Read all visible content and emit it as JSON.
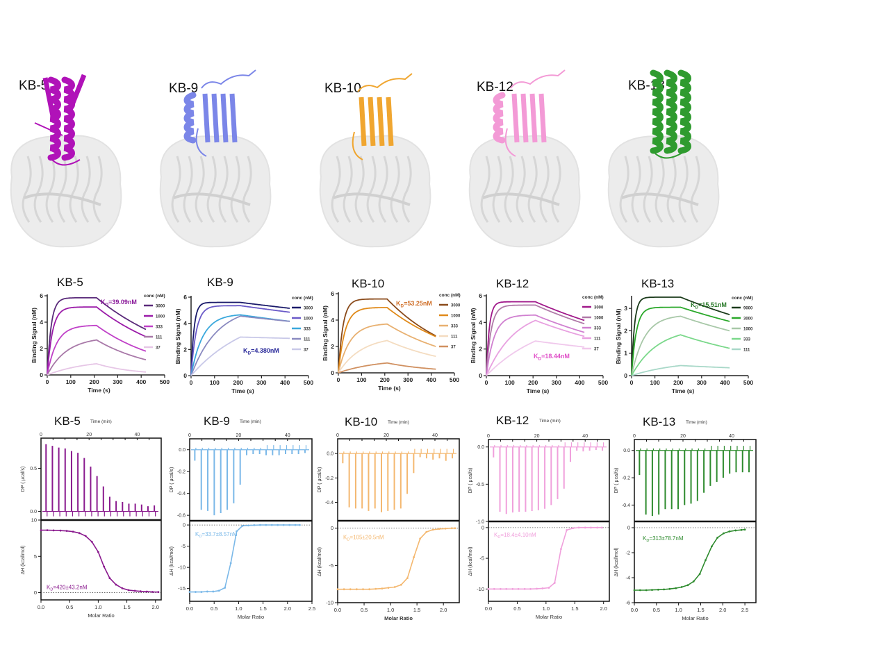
{
  "structures": [
    {
      "label": "KB-5",
      "color": "#b012b8"
    },
    {
      "label": "KB-9",
      "color": "#7b86e8"
    },
    {
      "label": "KB-10",
      "color": "#f0a630"
    },
    {
      "label": "KB-12",
      "color": "#f39ad6"
    },
    {
      "label": "KB-13",
      "color": "#2f9b2f"
    }
  ],
  "chart_data": [
    {
      "type": "line",
      "panel": "BLI",
      "title": "KB-5",
      "xlabel": "Time (s)",
      "ylabel": "Binding Signal (nM)",
      "xlim": [
        0,
        500
      ],
      "ylim": [
        0,
        6
      ],
      "xticks": [
        0,
        100,
        200,
        300,
        400,
        500
      ],
      "yticks": [
        0,
        2,
        4,
        6
      ],
      "annotation": {
        "text": "K",
        "sub": "D",
        "rest": "=39.09nM",
        "position": "top-right",
        "color": "#8a1a9a"
      },
      "legend": {
        "title": "conc (nM)",
        "position": "right"
      },
      "series": [
        {
          "name": "3000",
          "color": "#5a2a7a",
          "plateau": 5.85,
          "end": 3.45,
          "kon": 0.06,
          "koff": 0.0055
        },
        {
          "name": "1000",
          "color": "#9a1aa8",
          "plateau": 5.15,
          "end": 2.9,
          "kon": 0.045,
          "koff": 0.0055
        },
        {
          "name": "333",
          "color": "#c040c8",
          "plateau": 3.75,
          "end": 1.8,
          "kon": 0.025,
          "koff": 0.0065
        },
        {
          "name": "111",
          "color": "#a878a8",
          "plateau": 2.65,
          "end": 1.15,
          "kon": 0.012,
          "koff": 0.007
        },
        {
          "name": "37",
          "color": "#e6c6e6",
          "plateau": 0.85,
          "end": 0.22,
          "kon": 0.006,
          "koff": 0.01
        }
      ]
    },
    {
      "type": "line",
      "panel": "BLI",
      "title": "KB-9",
      "xlabel": "Time (s)",
      "ylabel": "Binding Signal (nM)",
      "xlim": [
        0,
        500
      ],
      "ylim": [
        0,
        6
      ],
      "xticks": [
        0,
        100,
        200,
        300,
        400,
        500
      ],
      "yticks": [
        0,
        2,
        4,
        6
      ],
      "annotation": {
        "text": "K",
        "sub": "D",
        "rest": "=4.380nM",
        "position": "center-right",
        "color": "#2a2a9a"
      },
      "legend": {
        "title": "conc (nM)",
        "position": "right"
      },
      "series": [
        {
          "name": "3000",
          "color": "#1a1a6a",
          "plateau": 5.6,
          "end": 5.15,
          "kon": 0.08,
          "koff": 0.0004
        },
        {
          "name": "1000",
          "color": "#6a5ac8",
          "plateau": 5.35,
          "end": 4.85,
          "kon": 0.045,
          "koff": 0.0005
        },
        {
          "name": "333",
          "color": "#3aa8dc",
          "plateau": 4.65,
          "end": 4.15,
          "kon": 0.02,
          "koff": 0.0005
        },
        {
          "name": "111",
          "color": "#8a8ac0",
          "plateau": 4.55,
          "end": 4.15,
          "kon": 0.009,
          "koff": 0.0005
        },
        {
          "name": "37",
          "color": "#c8c8e8",
          "plateau": 2.95,
          "end": 2.85,
          "kon": 0.004,
          "koff": 0.0002
        }
      ]
    },
    {
      "type": "line",
      "panel": "BLI",
      "title": "KB-10",
      "xlabel": "Time (s)",
      "ylabel": "Binding Signal (nM)",
      "xlim": [
        0,
        500
      ],
      "ylim": [
        0,
        6
      ],
      "xticks": [
        0,
        100,
        200,
        300,
        400,
        500
      ],
      "yticks": [
        0,
        2,
        4,
        6
      ],
      "annotation": {
        "text": "K",
        "sub": "D",
        "rest": "=53.25nM",
        "position": "top-right",
        "color": "#d0702a"
      },
      "legend": {
        "title": "conc (nM)",
        "position": "right"
      },
      "series": [
        {
          "name": "3000",
          "color": "#8a4a1a",
          "plateau": 5.6,
          "end": 2.8,
          "kon": 0.05,
          "koff": 0.0065
        },
        {
          "name": "1000",
          "color": "#e08a1a",
          "plateau": 4.95,
          "end": 2.75,
          "kon": 0.035,
          "koff": 0.0055
        },
        {
          "name": "333",
          "color": "#e8b070",
          "plateau": 3.7,
          "end": 2.0,
          "kon": 0.02,
          "koff": 0.0055
        },
        {
          "name": "111",
          "color": "#f4dcc0",
          "plateau": 2.45,
          "end": 1.25,
          "kon": 0.01,
          "koff": 0.006
        },
        {
          "name": "37",
          "color": "#d09060",
          "plateau": 0.75,
          "end": 0.28,
          "kon": 0.006,
          "koff": 0.008
        }
      ]
    },
    {
      "type": "line",
      "panel": "BLI",
      "title": "KB-12",
      "xlabel": "Time (s)",
      "ylabel": "Binding Signal (nM)",
      "xlim": [
        0,
        500
      ],
      "ylim": [
        0,
        6
      ],
      "xticks": [
        0,
        100,
        200,
        300,
        400,
        500
      ],
      "yticks": [
        0,
        2,
        4,
        6
      ],
      "annotation": {
        "text": "K",
        "sub": "D",
        "rest": "=18.44nM",
        "position": "center-right",
        "color": "#e050c8"
      },
      "legend": {
        "title": "conc (nM)",
        "position": "right"
      },
      "series": [
        {
          "name": "3000",
          "color": "#a0188a",
          "plateau": 5.55,
          "end": 4.15,
          "kon": 0.08,
          "koff": 0.0015
        },
        {
          "name": "1000",
          "color": "#b07aa8",
          "plateau": 5.3,
          "end": 3.9,
          "kon": 0.05,
          "koff": 0.0015
        },
        {
          "name": "333",
          "color": "#d080d0",
          "plateau": 4.55,
          "end": 3.25,
          "kon": 0.03,
          "koff": 0.0017
        },
        {
          "name": "111",
          "color": "#e8a0e0",
          "plateau": 4.15,
          "end": 2.95,
          "kon": 0.008,
          "koff": 0.0017
        },
        {
          "name": "37",
          "color": "#f0c8ec",
          "plateau": 2.6,
          "end": 2.15,
          "kon": 0.004,
          "koff": 0.001
        }
      ]
    },
    {
      "type": "line",
      "panel": "BLI",
      "title": "KB-13",
      "xlabel": "Time (s)",
      "ylabel": "Binding Signal (nM)",
      "xlim": [
        0,
        500
      ],
      "ylim": [
        0,
        3.5
      ],
      "xticks": [
        0,
        100,
        200,
        300,
        400,
        500
      ],
      "yticks": [
        0,
        1,
        2,
        3
      ],
      "annotation": {
        "text": "K",
        "sub": "D",
        "rest": "=15.51nM",
        "position": "top-right",
        "color": "#2a7a2a"
      },
      "legend": {
        "title": "conc (nM)",
        "position": "right"
      },
      "series": [
        {
          "name": "9000",
          "color": "#1a3a1a",
          "plateau": 3.5,
          "end": 2.72,
          "kon": 0.08,
          "koff": 0.0025
        },
        {
          "name": "3000",
          "color": "#2aa82a",
          "plateau": 3.05,
          "end": 2.42,
          "kon": 0.05,
          "koff": 0.0025
        },
        {
          "name": "1000",
          "color": "#a8c8a8",
          "plateau": 2.65,
          "end": 2.0,
          "kon": 0.018,
          "koff": 0.0028
        },
        {
          "name": "333",
          "color": "#7ad88a",
          "plateau": 1.82,
          "end": 1.22,
          "kon": 0.009,
          "koff": 0.004
        },
        {
          "name": "111",
          "color": "#a8d8c8",
          "plateau": 0.45,
          "end": 0.35,
          "kon": 0.005,
          "koff": 0.002
        }
      ]
    },
    {
      "type": "line",
      "panel": "ITC",
      "title": "KB-5",
      "color": "#8a1a8e",
      "top": {
        "xlabel": "Time (min)",
        "ylabel": "DP ( μcal/s)",
        "xlim": [
          0,
          50
        ],
        "ylim": [
          -0.1,
          0.85
        ],
        "xticks": [
          0,
          20,
          40
        ],
        "yticks": [
          0.0,
          0.5
        ],
        "ytick_labels": [
          "0.0",
          "0.5"
        ],
        "peaks": [
          0.78,
          0.76,
          0.74,
          0.73,
          0.7,
          0.68,
          0.62,
          0.52,
          0.41,
          0.29,
          0.17,
          0.12,
          0.11,
          0.09,
          0.09,
          0.08,
          0.06,
          0.07
        ],
        "direction": "up"
      },
      "bottom": {
        "xlabel": "Molar Ratio",
        "ylabel": "ΔH (kcal/mol)",
        "xlim": [
          0,
          2.1
        ],
        "ylim": [
          -1,
          10
        ],
        "xticks": [
          0.0,
          0.5,
          1.0,
          1.5,
          2.0
        ],
        "xtick_labels": [
          "0.0",
          "0.5",
          "1.0",
          "1.5",
          "2.0"
        ],
        "yticks": [
          0,
          5,
          10
        ],
        "ytick_labels": [
          "0",
          "5",
          "10"
        ],
        "x": [
          0.0,
          0.11,
          0.22,
          0.34,
          0.45,
          0.56,
          0.67,
          0.78,
          0.89,
          1.0,
          1.1,
          1.2,
          1.31,
          1.42,
          1.53,
          1.64,
          1.74,
          1.85,
          1.95,
          2.05
        ],
        "y": [
          8.6,
          8.6,
          8.58,
          8.55,
          8.5,
          8.4,
          8.2,
          7.8,
          7.0,
          5.6,
          3.6,
          2.0,
          1.1,
          0.6,
          0.35,
          0.25,
          0.18,
          0.14,
          0.1,
          0.08
        ],
        "annotation": {
          "text": "K",
          "sub": "D",
          "rest": "=420±43.2nM"
        }
      }
    },
    {
      "type": "line",
      "panel": "ITC",
      "title": "KB-9",
      "color": "#7ab8e8",
      "top": {
        "xlabel": "Time (min)",
        "ylabel": "DP ( μcal/s)",
        "xlim": [
          0,
          50
        ],
        "ylim": [
          -0.65,
          0.1
        ],
        "xticks": [
          0,
          20,
          40
        ],
        "yticks": [
          0.0,
          -0.2,
          -0.4,
          -0.6
        ],
        "ytick_labels": [
          "0.0",
          "-0.2",
          "-0.4",
          "-0.6"
        ],
        "peaks": [
          -0.1,
          -0.55,
          -0.56,
          -0.6,
          -0.58,
          -0.55,
          -0.49,
          -0.32,
          -0.05,
          -0.04,
          -0.04,
          -0.05,
          -0.05,
          -0.05,
          -0.04,
          -0.04,
          -0.04,
          -0.03
        ],
        "direction": "down"
      },
      "bottom": {
        "xlabel": "Molar Ratio",
        "ylabel": "ΔH (kcal/mol)",
        "xlim": [
          0,
          2.5
        ],
        "ylim": [
          -18,
          1
        ],
        "xticks": [
          0.0,
          0.5,
          1.0,
          1.5,
          2.0,
          2.5
        ],
        "xtick_labels": [
          "0.0",
          "0.5",
          "1.0",
          "1.5",
          "2.0",
          "2.5"
        ],
        "yticks": [
          0,
          -5,
          -10,
          -15
        ],
        "ytick_labels": [
          "0",
          "-5",
          "-10",
          "-15"
        ],
        "x": [
          0.0,
          0.12,
          0.24,
          0.36,
          0.48,
          0.6,
          0.72,
          0.84,
          0.96,
          1.08,
          1.2,
          1.32,
          1.44,
          1.56,
          1.68,
          1.8,
          1.92,
          2.04,
          2.16,
          2.25
        ],
        "y": [
          -15.8,
          -15.8,
          -15.8,
          -15.7,
          -15.7,
          -15.5,
          -14.8,
          -9.0,
          -1.5,
          -0.2,
          -0.1,
          -0.05,
          0,
          0,
          0,
          0,
          0,
          0,
          0,
          0
        ],
        "annotation": {
          "text": "K",
          "sub": "D",
          "rest": "=33.7±8.57nM"
        }
      }
    },
    {
      "type": "line",
      "panel": "ITC",
      "title": "KB-10",
      "color": "#f4b870",
      "top": {
        "xlabel": "Time (min)",
        "ylabel": "DP ( μcal/s)",
        "xlim": [
          0,
          50
        ],
        "ylim": [
          -0.55,
          0.12
        ],
        "xticks": [
          0,
          20,
          40
        ],
        "yticks": [
          0.0,
          -0.2,
          -0.4
        ],
        "ytick_labels": [
          "0.0",
          "-0.2",
          "-0.4"
        ],
        "peaks": [
          -0.08,
          -0.44,
          -0.45,
          -0.45,
          -0.47,
          -0.45,
          -0.48,
          -0.47,
          -0.46,
          -0.45,
          -0.33,
          -0.16,
          -0.03,
          -0.04,
          -0.05,
          -0.04,
          -0.06,
          -0.04
        ],
        "direction": "down"
      },
      "bottom": {
        "xlabel": "Molar Ratio",
        "ylabel": "ΔH (kcal/mol)",
        "xlim": [
          0,
          2.3
        ],
        "ylim": [
          -10,
          1
        ],
        "xticks": [
          0.0,
          0.5,
          1.0,
          1.5,
          2.0
        ],
        "xtick_labels": [
          "0.0",
          "0.5",
          "1.0",
          "1.5",
          "2.0"
        ],
        "yticks": [
          0,
          -5,
          -10
        ],
        "ytick_labels": [
          "0",
          "-5",
          "-10"
        ],
        "x": [
          0.0,
          0.12,
          0.24,
          0.36,
          0.48,
          0.6,
          0.72,
          0.84,
          0.96,
          1.08,
          1.2,
          1.32,
          1.44,
          1.56,
          1.68,
          1.8,
          1.92,
          2.04,
          2.16,
          2.22
        ],
        "y": [
          -8.2,
          -8.2,
          -8.2,
          -8.2,
          -8.2,
          -8.2,
          -8.15,
          -8.1,
          -8.0,
          -7.9,
          -7.6,
          -6.7,
          -3.9,
          -1.4,
          -0.5,
          -0.2,
          -0.1,
          -0.05,
          0,
          0
        ],
        "annotation": {
          "text": "K",
          "sub": "D",
          "rest": "=105±20.5nM"
        }
      }
    },
    {
      "type": "line",
      "panel": "ITC",
      "title": "KB-12",
      "color": "#f0a0dc",
      "top": {
        "xlabel": "Time (min)",
        "ylabel": "DP ( μcal/s)",
        "xlim": [
          0,
          50
        ],
        "ylim": [
          -1.0,
          0.1
        ],
        "xticks": [
          0,
          20,
          40
        ],
        "yticks": [
          0.0,
          -0.5,
          -1.0
        ],
        "ytick_labels": [
          "0.0",
          "-0.5",
          "-1.0"
        ],
        "peaks": [
          -0.14,
          -0.87,
          -0.9,
          -0.88,
          -0.87,
          -0.87,
          -0.86,
          -0.85,
          -0.83,
          -0.78,
          -0.7,
          -0.56,
          -0.2,
          -0.05,
          -0.06,
          -0.05,
          -0.04,
          -0.05
        ],
        "direction": "down"
      },
      "bottom": {
        "xlabel": "Molar Ratio",
        "ylabel": "ΔH (kcal/mol)",
        "xlim": [
          0,
          2.1
        ],
        "ylim": [
          -12,
          1
        ],
        "xticks": [
          0.0,
          0.5,
          1.0,
          1.5,
          2.0
        ],
        "xtick_labels": [
          "0.0",
          "0.5",
          "1.0",
          "1.5",
          "2.0"
        ],
        "yticks": [
          0,
          -5,
          -10
        ],
        "ytick_labels": [
          "0",
          "-5",
          "-10"
        ],
        "x": [
          0.0,
          0.1,
          0.21,
          0.31,
          0.42,
          0.52,
          0.63,
          0.73,
          0.84,
          0.94,
          1.05,
          1.15,
          1.26,
          1.36,
          1.47,
          1.57,
          1.68,
          1.78,
          1.89,
          1.97
        ],
        "y": [
          -10.0,
          -10.0,
          -10.0,
          -10.0,
          -10.0,
          -10.0,
          -10.0,
          -10.0,
          -9.95,
          -9.9,
          -9.8,
          -9.0,
          -3.5,
          -0.4,
          -0.1,
          0,
          0,
          0,
          0,
          0
        ],
        "annotation": {
          "text": "K",
          "sub": "D",
          "rest": "=18.4±4.10nM"
        }
      }
    },
    {
      "type": "line",
      "panel": "ITC",
      "title": "KB-13",
      "color": "#2e8b2e",
      "top": {
        "xlabel": "Time (min)",
        "ylabel": "DP ( μcal/s)",
        "xlim": [
          0,
          50
        ],
        "ylim": [
          -0.52,
          0.08
        ],
        "xticks": [
          0,
          20,
          40
        ],
        "yticks": [
          0.0,
          -0.2,
          -0.4
        ],
        "ytick_labels": [
          "0.0",
          "-0.2",
          "-0.4"
        ],
        "peaks": [
          -0.18,
          -0.47,
          -0.48,
          -0.47,
          -0.43,
          -0.43,
          -0.43,
          -0.4,
          -0.39,
          -0.37,
          -0.31,
          -0.26,
          -0.23,
          -0.2,
          -0.17,
          -0.16,
          -0.16,
          -0.16
        ],
        "direction": "down"
      },
      "bottom": {
        "xlabel": "Molar Ratio",
        "ylabel": "ΔH (kcal/mol)",
        "xlim": [
          0,
          2.75
        ],
        "ylim": [
          -6,
          0.5
        ],
        "xticks": [
          0.0,
          0.5,
          1.0,
          1.5,
          2.0,
          2.5
        ],
        "xtick_labels": [
          "0.0",
          "0.5",
          "1.0",
          "1.5",
          "2.0",
          "2.5"
        ],
        "yticks": [
          0,
          -2,
          -4,
          -6
        ],
        "ytick_labels": [
          "0",
          "-2",
          "-4",
          "-6"
        ],
        "x": [
          0.0,
          0.13,
          0.27,
          0.4,
          0.54,
          0.67,
          0.8,
          0.94,
          1.07,
          1.21,
          1.34,
          1.48,
          1.61,
          1.75,
          1.88,
          2.02,
          2.15,
          2.29,
          2.42,
          2.5
        ],
        "y": [
          -5.0,
          -5.0,
          -5.0,
          -4.98,
          -4.96,
          -4.94,
          -4.9,
          -4.84,
          -4.75,
          -4.6,
          -4.3,
          -3.7,
          -2.6,
          -1.5,
          -0.8,
          -0.45,
          -0.3,
          -0.22,
          -0.18,
          -0.15
        ],
        "annotation": {
          "text": "K",
          "sub": "D",
          "rest": "=313±78.7nM"
        }
      }
    }
  ]
}
